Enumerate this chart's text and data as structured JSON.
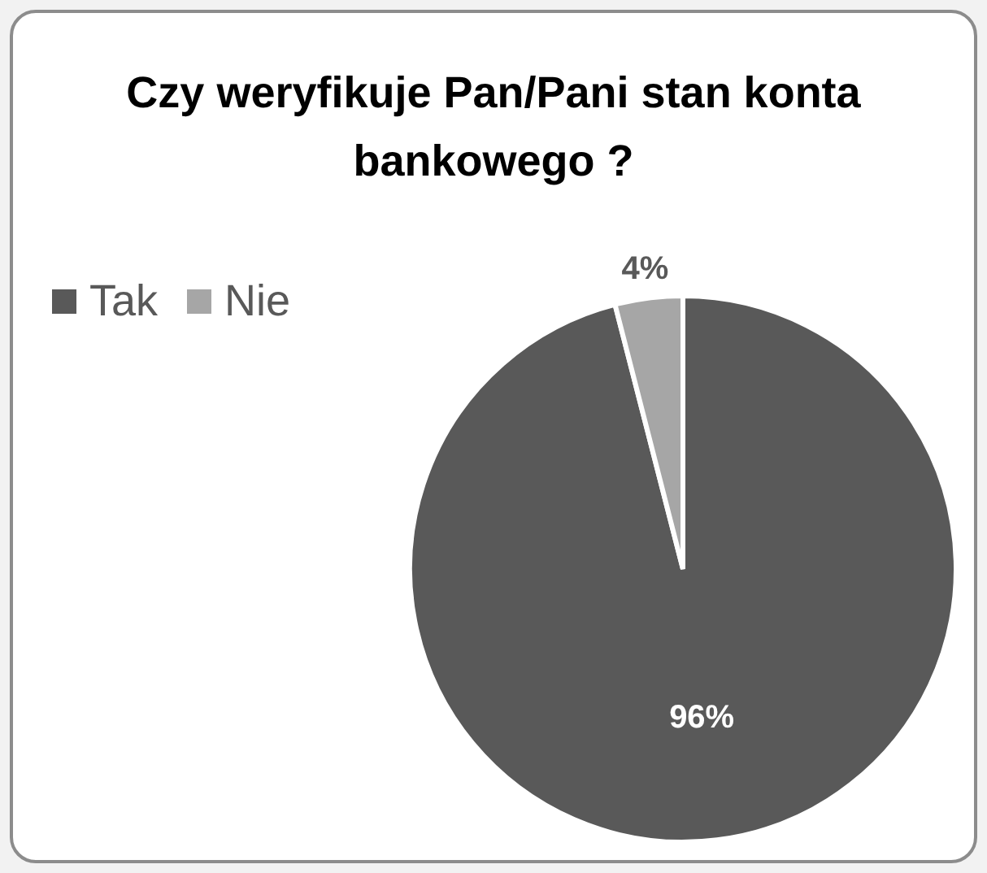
{
  "chart_data": {
    "type": "pie",
    "title": "Czy weryfikuje Pan/Pani stan konta bankowego ?",
    "categories": [
      "Tak",
      "Nie"
    ],
    "values": [
      96,
      4
    ],
    "colors": [
      "#595959",
      "#a6a6a6"
    ],
    "value_labels": [
      "96%",
      "4%"
    ],
    "legend": "top left"
  }
}
